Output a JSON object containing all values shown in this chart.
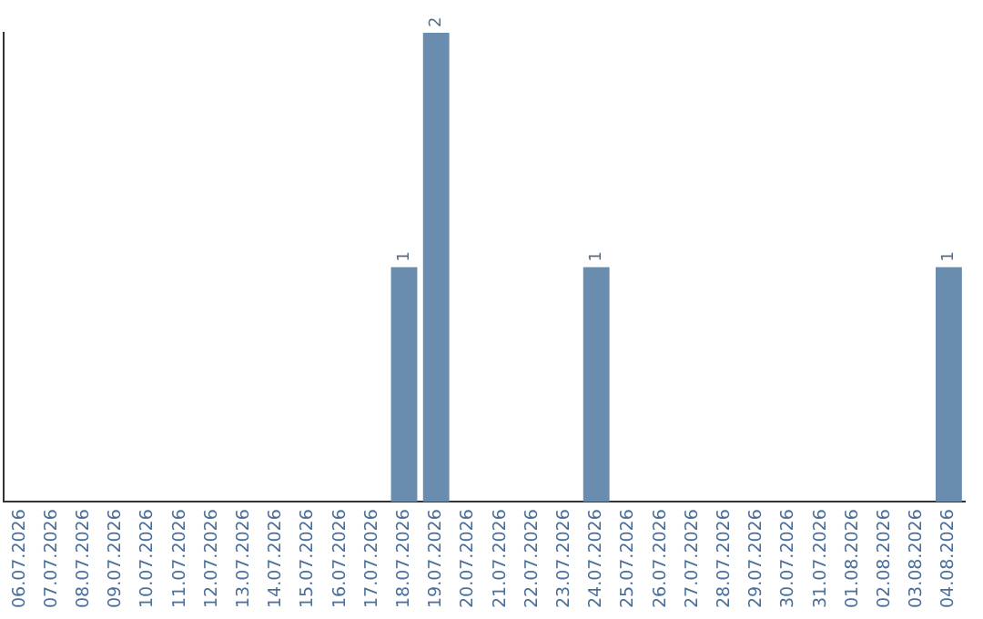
{
  "chart_data": {
    "type": "bar",
    "categories": [
      "06.07.2026",
      "07.07.2026",
      "08.07.2026",
      "09.07.2026",
      "10.07.2026",
      "11.07.2026",
      "12.07.2026",
      "13.07.2026",
      "14.07.2026",
      "15.07.2026",
      "16.07.2026",
      "17.07.2026",
      "18.07.2026",
      "19.07.2026",
      "20.07.2026",
      "21.07.2026",
      "22.07.2026",
      "23.07.2026",
      "24.07.2026",
      "25.07.2026",
      "26.07.2026",
      "27.07.2026",
      "28.07.2026",
      "29.07.2026",
      "30.07.2026",
      "31.07.2026",
      "01.08.2026",
      "02.08.2026",
      "03.08.2026",
      "04.08.2026"
    ],
    "values": [
      null,
      null,
      null,
      null,
      null,
      null,
      null,
      null,
      null,
      null,
      null,
      null,
      1,
      2,
      null,
      null,
      null,
      null,
      1,
      null,
      null,
      null,
      null,
      null,
      null,
      null,
      null,
      null,
      null,
      1
    ],
    "value_labels": [
      null,
      null,
      null,
      null,
      null,
      null,
      null,
      null,
      null,
      null,
      null,
      null,
      "1",
      "2",
      null,
      null,
      null,
      null,
      "1",
      null,
      null,
      null,
      null,
      null,
      null,
      null,
      null,
      null,
      null,
      "1"
    ],
    "color": "#6a8caf",
    "tick_labels": "x",
    "grid": false,
    "legend": false
  }
}
